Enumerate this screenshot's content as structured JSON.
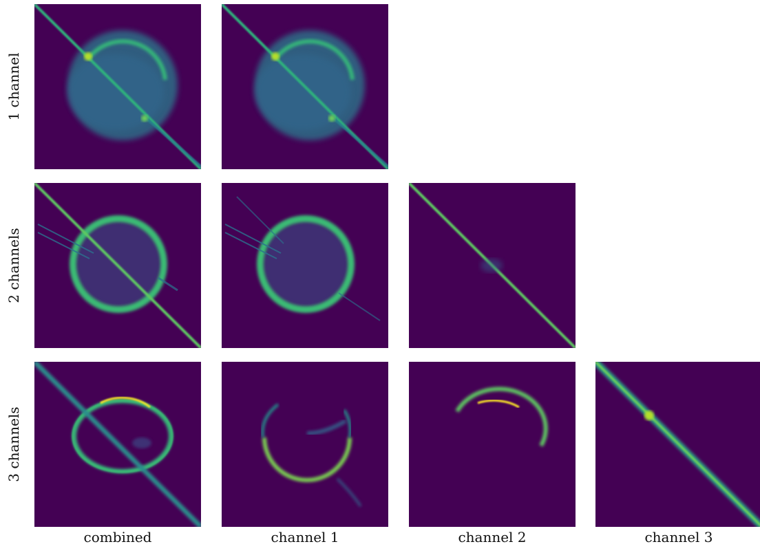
{
  "figure": {
    "rows": [
      {
        "label": "1 channel",
        "panels": [
          "combined",
          "channel 1"
        ]
      },
      {
        "label": "2 channels",
        "panels": [
          "combined",
          "channel 1",
          "channel 2"
        ]
      },
      {
        "label": "3 channels",
        "panels": [
          "combined",
          "channel 1",
          "channel 2",
          "channel 3"
        ]
      }
    ],
    "columns": [
      "combined",
      "channel 1",
      "channel 2",
      "channel 3"
    ]
  },
  "colors": {
    "background": "#440154",
    "low": "#3b528b",
    "mid": "#21918c",
    "high": "#5ec962",
    "peak": "#fde725"
  }
}
